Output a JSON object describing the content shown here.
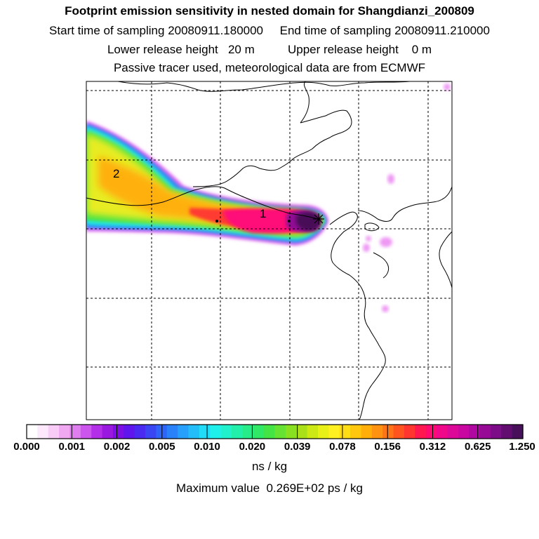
{
  "header": {
    "title": "Footprint emission sensitivity in nested domain for Shangdianzi_200809",
    "start_label": "Start time of sampling",
    "start_value": "20080911.180000",
    "end_label": "End time of sampling",
    "end_value": "20080911.210000",
    "lower_label": "Lower release height",
    "lower_value": "20 m",
    "upper_label": "Upper release height",
    "upper_value": "0 m",
    "note": "Passive tracer used, meteorological data are from ECMWF"
  },
  "map": {
    "point_labels": [
      "1",
      "2"
    ],
    "receptor_marker": "asterisk-icon"
  },
  "colorbar": {
    "tick_labels": [
      "0.000",
      "0.001",
      "0.002",
      "0.005",
      "0.010",
      "0.020",
      "0.039",
      "0.078",
      "0.156",
      "0.312",
      "0.625",
      "1.250"
    ],
    "colors": [
      "#ffffff",
      "#fde9fb",
      "#f8ccf6",
      "#f0a8f0",
      "#df7eef",
      "#cc55ee",
      "#b330e8",
      "#9a18e0",
      "#7d0ee4",
      "#5f16ec",
      "#4a2af0",
      "#3a46f4",
      "#2f64f8",
      "#2a82fa",
      "#27a0fb",
      "#23befa",
      "#20dcf7",
      "#20f0ea",
      "#20f0cc",
      "#22f0aa",
      "#28ec88",
      "#30e866",
      "#44e444",
      "#66e233",
      "#88e020",
      "#aae018",
      "#cce815",
      "#e8f018",
      "#fff022",
      "#ffde16",
      "#ffc80e",
      "#ffae0a",
      "#ff9210",
      "#ff7418",
      "#ff5420",
      "#ff3530",
      "#ff1850",
      "#ff0a70",
      "#f0088a",
      "#dc0898",
      "#c808a0",
      "#b008a0",
      "#960a96",
      "#7c0c88",
      "#620e70",
      "#48105a"
    ],
    "unit": "ns / kg"
  },
  "footer": {
    "max_label": "Maximum value",
    "max_value": "0.269E+02 ps / kg"
  }
}
